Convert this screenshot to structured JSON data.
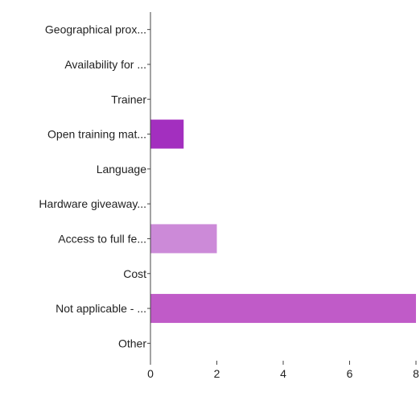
{
  "chart_data": {
    "type": "bar",
    "orientation": "horizontal",
    "categories": [
      "Geographical prox...",
      "Availability for ...",
      "Trainer",
      "Open training mat...",
      "Language",
      "Hardware giveaway...",
      "Access to full fe...",
      "Cost",
      "Not applicable - ...",
      "Other"
    ],
    "values": [
      0,
      0,
      0,
      1,
      0,
      0,
      2,
      0,
      8,
      0
    ],
    "colors": [
      "#c05bc8",
      "#c05bc8",
      "#c05bc8",
      "#a32fbf",
      "#c05bc8",
      "#c05bc8",
      "#cc8ad8",
      "#c05bc8",
      "#c05bc8",
      "#c05bc8"
    ],
    "x_ticks": [
      0,
      2,
      4,
      6,
      8
    ],
    "xlim": [
      0,
      8
    ],
    "title": "",
    "xlabel": "",
    "ylabel": "",
    "grid": false,
    "legend": "none"
  }
}
